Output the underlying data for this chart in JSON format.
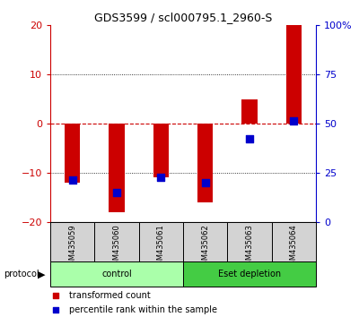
{
  "title": "GDS3599 / scl000795.1_2960-S",
  "samples": [
    "GSM435059",
    "GSM435060",
    "GSM435061",
    "GSM435062",
    "GSM435063",
    "GSM435064"
  ],
  "red_bars": [
    -12,
    -18,
    -11,
    -16,
    5,
    20
  ],
  "blue_squares_left": [
    -11.5,
    -14,
    -11,
    -12,
    -3,
    0.5
  ],
  "ylim_left": [
    -20,
    20
  ],
  "ylim_right": [
    0,
    100
  ],
  "yticks_left": [
    -20,
    -10,
    0,
    10,
    20
  ],
  "yticks_right": [
    0,
    25,
    50,
    75,
    100
  ],
  "ytick_labels_right": [
    "0",
    "25",
    "50",
    "75",
    "100%"
  ],
  "groups": [
    {
      "label": "control",
      "start": 0,
      "end": 3,
      "color": "#aaffaa"
    },
    {
      "label": "Eset depletion",
      "start": 3,
      "end": 6,
      "color": "#44cc44"
    }
  ],
  "protocol_label": "protocol",
  "legend_items": [
    {
      "label": "transformed count",
      "color": "#cc0000"
    },
    {
      "label": "percentile rank within the sample",
      "color": "#0000cc"
    }
  ],
  "bar_color": "#cc0000",
  "dot_color": "#0000cc",
  "bar_width": 0.35,
  "dot_size": 40,
  "background_color": "#ffffff",
  "zero_line_color": "#cc0000",
  "left_axis_color": "#cc0000",
  "right_axis_color": "#0000cc"
}
